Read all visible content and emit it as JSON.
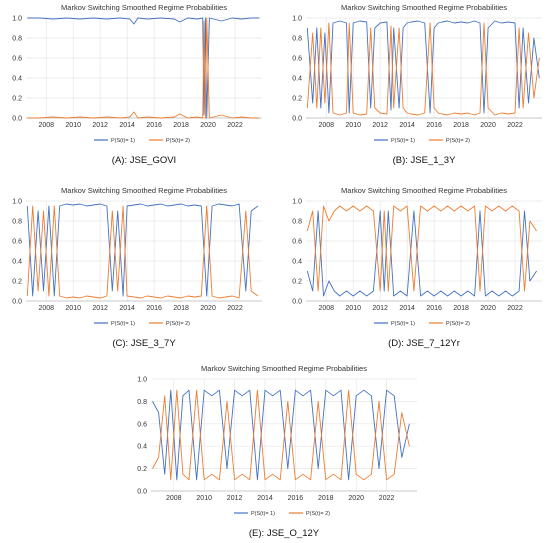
{
  "figure": {
    "colors": {
      "series1": "#4472C4",
      "series2": "#ED7D31",
      "grid": "#e6e6e6",
      "axis": "#bfbfbf"
    }
  },
  "chart_data": [
    {
      "type": "line",
      "title": "Markov Switching Smoothed Regime Probabilities",
      "caption": "(A): JSE_GOVI",
      "xlabel": "",
      "ylabel": "",
      "xlim": [
        2006.5,
        2024.0
      ],
      "ylim": [
        0,
        1.0
      ],
      "xticks": [
        "2008",
        "2010",
        "2012",
        "2014",
        "2016",
        "2018",
        "2020",
        "2022"
      ],
      "yticks": [
        "0.0",
        "0.2",
        "0.4",
        "0.6",
        "0.8",
        "1.0"
      ],
      "grid": true,
      "legend": "bottom",
      "series": [
        {
          "name": "P(S(t)= 1)",
          "color": "#4472C4",
          "x": [
            2006.6,
            2007.5,
            2008.5,
            2009.5,
            2010.5,
            2011.5,
            2012.5,
            2013.5,
            2014.2,
            2014.5,
            2014.8,
            2015.5,
            2016.5,
            2017.5,
            2017.9,
            2018.5,
            2019.2,
            2019.6,
            2019.7,
            2019.8,
            2019.9,
            2020.1,
            2020.4,
            2021.0,
            2021.8,
            2022.5,
            2023.2,
            2023.8
          ],
          "y": [
            1.0,
            1.0,
            0.99,
            1.0,
            0.99,
            1.0,
            0.99,
            1.0,
            0.99,
            0.94,
            1.0,
            0.99,
            1.0,
            0.99,
            0.96,
            1.0,
            0.99,
            1.0,
            0.03,
            1.0,
            0.0,
            1.0,
            0.99,
            0.97,
            1.0,
            0.99,
            1.0,
            1.0
          ]
        },
        {
          "name": "P(S(t)= 2)",
          "color": "#ED7D31",
          "x": [
            2006.6,
            2007.5,
            2008.5,
            2009.5,
            2010.5,
            2011.5,
            2012.5,
            2013.5,
            2014.2,
            2014.5,
            2014.8,
            2015.5,
            2016.5,
            2017.5,
            2017.9,
            2018.5,
            2019.2,
            2019.6,
            2019.7,
            2019.8,
            2019.9,
            2020.1,
            2020.4,
            2021.0,
            2021.8,
            2022.5,
            2023.2,
            2023.8
          ],
          "y": [
            0.0,
            0.0,
            0.01,
            0.0,
            0.01,
            0.0,
            0.01,
            0.0,
            0.01,
            0.06,
            0.0,
            0.01,
            0.0,
            0.01,
            0.04,
            0.0,
            0.01,
            0.0,
            0.97,
            0.0,
            1.0,
            0.0,
            0.01,
            0.03,
            0.0,
            0.01,
            0.0,
            0.0
          ]
        }
      ]
    },
    {
      "type": "line",
      "title": "Markov Switching Smoothed Regime Probabilities",
      "caption": "(B): JSE_1_3Y",
      "xlabel": "",
      "ylabel": "",
      "xlim": [
        2006.5,
        2024.0
      ],
      "ylim": [
        0,
        1.0
      ],
      "xticks": [
        "2008",
        "2010",
        "2012",
        "2014",
        "2016",
        "2018",
        "2020",
        "2022"
      ],
      "yticks": [
        "0.0",
        "0.2",
        "0.4",
        "0.6",
        "0.8",
        "1.0"
      ],
      "grid": true,
      "legend": "bottom",
      "series": [
        {
          "name": "P(S(t)= 1)",
          "color": "#4472C4",
          "x": [
            2006.6,
            2007.0,
            2007.3,
            2007.6,
            2007.9,
            2008.2,
            2008.5,
            2009.0,
            2009.5,
            2009.7,
            2010.0,
            2010.5,
            2011.0,
            2011.3,
            2011.6,
            2012.0,
            2012.5,
            2012.8,
            2013.0,
            2013.4,
            2013.7,
            2014.0,
            2014.3,
            2014.8,
            2015.3,
            2015.7,
            2016.0,
            2016.3,
            2016.6,
            2017.0,
            2017.5,
            2018.0,
            2018.5,
            2019.0,
            2019.4,
            2019.7,
            2020.0,
            2020.5,
            2021.0,
            2021.5,
            2022.0,
            2022.3,
            2022.6,
            2023.0,
            2023.4,
            2023.8
          ],
          "y": [
            0.9,
            0.15,
            0.9,
            0.1,
            0.85,
            0.05,
            0.95,
            0.97,
            0.95,
            0.05,
            0.95,
            0.97,
            0.96,
            0.1,
            0.9,
            0.95,
            0.96,
            0.08,
            0.9,
            0.1,
            0.9,
            0.95,
            0.96,
            0.97,
            0.95,
            0.05,
            0.9,
            0.95,
            0.96,
            0.97,
            0.95,
            0.96,
            0.95,
            0.97,
            0.95,
            0.05,
            0.9,
            0.97,
            0.95,
            0.96,
            0.95,
            0.1,
            0.9,
            0.15,
            0.8,
            0.4
          ]
        },
        {
          "name": "P(S(t)= 2)",
          "color": "#ED7D31",
          "x": [
            2006.6,
            2007.0,
            2007.3,
            2007.6,
            2007.9,
            2008.2,
            2008.5,
            2009.0,
            2009.5,
            2009.7,
            2010.0,
            2010.5,
            2011.0,
            2011.3,
            2011.6,
            2012.0,
            2012.5,
            2012.8,
            2013.0,
            2013.4,
            2013.7,
            2014.0,
            2014.3,
            2014.8,
            2015.3,
            2015.7,
            2016.0,
            2016.3,
            2016.6,
            2017.0,
            2017.5,
            2018.0,
            2018.5,
            2019.0,
            2019.4,
            2019.7,
            2020.0,
            2020.5,
            2021.0,
            2021.5,
            2022.0,
            2022.3,
            2022.6,
            2023.0,
            2023.4,
            2023.8
          ],
          "y": [
            0.1,
            0.85,
            0.1,
            0.9,
            0.15,
            0.95,
            0.05,
            0.03,
            0.05,
            0.95,
            0.05,
            0.03,
            0.04,
            0.9,
            0.1,
            0.05,
            0.04,
            0.92,
            0.1,
            0.9,
            0.1,
            0.05,
            0.04,
            0.03,
            0.05,
            0.95,
            0.1,
            0.05,
            0.04,
            0.03,
            0.05,
            0.04,
            0.05,
            0.03,
            0.05,
            0.95,
            0.1,
            0.03,
            0.05,
            0.04,
            0.05,
            0.9,
            0.1,
            0.85,
            0.2,
            0.6
          ]
        }
      ]
    },
    {
      "type": "line",
      "title": "Markov Switching Smoothed Regime Probabilities",
      "caption": "(C): JSE_3_7Y",
      "xlabel": "",
      "ylabel": "",
      "xlim": [
        2006.5,
        2024.0
      ],
      "ylim": [
        0,
        1.0
      ],
      "xticks": [
        "2008",
        "2010",
        "2012",
        "2014",
        "2016",
        "2018",
        "2020",
        "2022"
      ],
      "yticks": [
        "0.0",
        "0.2",
        "0.4",
        "0.6",
        "0.8",
        "1.0"
      ],
      "grid": true,
      "legend": "bottom",
      "series": [
        {
          "name": "P(S(t)= 1)",
          "color": "#4472C4",
          "x": [
            2006.6,
            2007.0,
            2007.4,
            2007.8,
            2008.2,
            2008.6,
            2009.0,
            2009.5,
            2010.0,
            2010.5,
            2011.0,
            2011.5,
            2012.0,
            2012.5,
            2012.9,
            2013.3,
            2013.7,
            2014.0,
            2014.5,
            2015.0,
            2015.5,
            2016.0,
            2016.5,
            2017.0,
            2017.5,
            2018.0,
            2018.5,
            2019.0,
            2019.5,
            2019.9,
            2020.3,
            2020.8,
            2021.3,
            2021.8,
            2022.3,
            2022.8,
            2023.2,
            2023.7
          ],
          "y": [
            0.95,
            0.05,
            0.9,
            0.1,
            0.95,
            0.05,
            0.95,
            0.97,
            0.96,
            0.97,
            0.95,
            0.96,
            0.97,
            0.95,
            0.1,
            0.9,
            0.05,
            0.95,
            0.96,
            0.97,
            0.95,
            0.96,
            0.97,
            0.95,
            0.96,
            0.97,
            0.95,
            0.96,
            0.95,
            0.05,
            0.95,
            0.97,
            0.96,
            0.95,
            0.97,
            0.1,
            0.9,
            0.95
          ]
        },
        {
          "name": "P(S(t)= 2)",
          "color": "#ED7D31",
          "x": [
            2006.6,
            2007.0,
            2007.4,
            2007.8,
            2008.2,
            2008.6,
            2009.0,
            2009.5,
            2010.0,
            2010.5,
            2011.0,
            2011.5,
            2012.0,
            2012.5,
            2012.9,
            2013.3,
            2013.7,
            2014.0,
            2014.5,
            2015.0,
            2015.5,
            2016.0,
            2016.5,
            2017.0,
            2017.5,
            2018.0,
            2018.5,
            2019.0,
            2019.5,
            2019.9,
            2020.3,
            2020.8,
            2021.3,
            2021.8,
            2022.3,
            2022.8,
            2023.2,
            2023.7
          ],
          "y": [
            0.05,
            0.95,
            0.1,
            0.9,
            0.05,
            0.95,
            0.05,
            0.03,
            0.04,
            0.03,
            0.05,
            0.04,
            0.03,
            0.05,
            0.9,
            0.1,
            0.95,
            0.05,
            0.04,
            0.03,
            0.05,
            0.04,
            0.03,
            0.05,
            0.04,
            0.03,
            0.05,
            0.04,
            0.05,
            0.95,
            0.05,
            0.03,
            0.04,
            0.05,
            0.03,
            0.9,
            0.1,
            0.05
          ]
        }
      ]
    },
    {
      "type": "line",
      "title": "Markov Switching Smoothed Regime Probabilities",
      "caption": "(D): JSE_7_12Yr",
      "xlabel": "",
      "ylabel": "",
      "xlim": [
        2006.5,
        2024.0
      ],
      "ylim": [
        0,
        1.0
      ],
      "xticks": [
        "2008",
        "2010",
        "2012",
        "2014",
        "2016",
        "2018",
        "2020",
        "2022"
      ],
      "yticks": [
        "0.0",
        "0.2",
        "0.4",
        "0.6",
        "0.8",
        "1.0"
      ],
      "grid": true,
      "legend": "bottom",
      "series": [
        {
          "name": "P(S(t)= 1)",
          "color": "#4472C4",
          "x": [
            2006.6,
            2007.0,
            2007.4,
            2007.8,
            2008.2,
            2008.6,
            2009.0,
            2009.5,
            2010.0,
            2010.5,
            2011.0,
            2011.5,
            2012.0,
            2012.3,
            2012.6,
            2013.0,
            2013.5,
            2014.0,
            2014.5,
            2015.0,
            2015.5,
            2016.0,
            2016.5,
            2017.0,
            2017.5,
            2018.0,
            2018.5,
            2019.0,
            2019.4,
            2019.8,
            2020.3,
            2020.8,
            2021.3,
            2021.8,
            2022.3,
            2022.7,
            2023.1,
            2023.6
          ],
          "y": [
            0.3,
            0.1,
            0.9,
            0.05,
            0.2,
            0.1,
            0.05,
            0.1,
            0.05,
            0.1,
            0.05,
            0.1,
            0.9,
            0.1,
            0.9,
            0.05,
            0.1,
            0.05,
            0.9,
            0.05,
            0.1,
            0.05,
            0.1,
            0.05,
            0.1,
            0.05,
            0.1,
            0.05,
            0.9,
            0.05,
            0.1,
            0.05,
            0.1,
            0.05,
            0.1,
            0.9,
            0.2,
            0.3
          ]
        },
        {
          "name": "P(S(t)= 2)",
          "color": "#ED7D31",
          "x": [
            2006.6,
            2007.0,
            2007.4,
            2007.8,
            2008.2,
            2008.6,
            2009.0,
            2009.5,
            2010.0,
            2010.5,
            2011.0,
            2011.5,
            2012.0,
            2012.3,
            2012.6,
            2013.0,
            2013.5,
            2014.0,
            2014.5,
            2015.0,
            2015.5,
            2016.0,
            2016.5,
            2017.0,
            2017.5,
            2018.0,
            2018.5,
            2019.0,
            2019.4,
            2019.8,
            2020.3,
            2020.8,
            2021.3,
            2021.8,
            2022.3,
            2022.7,
            2023.1,
            2023.6
          ],
          "y": [
            0.7,
            0.9,
            0.1,
            0.95,
            0.8,
            0.9,
            0.95,
            0.9,
            0.95,
            0.9,
            0.95,
            0.9,
            0.1,
            0.9,
            0.1,
            0.95,
            0.9,
            0.95,
            0.1,
            0.95,
            0.9,
            0.95,
            0.9,
            0.95,
            0.9,
            0.95,
            0.9,
            0.95,
            0.1,
            0.95,
            0.9,
            0.95,
            0.9,
            0.95,
            0.9,
            0.1,
            0.8,
            0.7
          ]
        }
      ]
    },
    {
      "type": "line",
      "title": "Markov Switching Smoothed Regime Probabilities",
      "caption": "(E): JSE_O_12Y",
      "xlabel": "",
      "ylabel": "",
      "xlim": [
        2006.5,
        2024.0
      ],
      "ylim": [
        0,
        1.0
      ],
      "xticks": [
        "2008",
        "2010",
        "2012",
        "2014",
        "2016",
        "2018",
        "2020",
        "2022"
      ],
      "yticks": [
        "0.0",
        "0.2",
        "0.4",
        "0.6",
        "0.8",
        "1.0"
      ],
      "grid": true,
      "legend": "bottom",
      "series": [
        {
          "name": "P(S(t)= 1)",
          "color": "#4472C4",
          "x": [
            2006.6,
            2007.0,
            2007.4,
            2007.8,
            2008.2,
            2008.6,
            2009.0,
            2009.5,
            2010.0,
            2010.5,
            2011.0,
            2011.5,
            2012.0,
            2012.5,
            2013.0,
            2013.5,
            2014.0,
            2014.5,
            2015.0,
            2015.5,
            2016.0,
            2016.5,
            2017.0,
            2017.5,
            2018.0,
            2018.5,
            2019.0,
            2019.5,
            2020.0,
            2020.5,
            2021.0,
            2021.5,
            2022.0,
            2022.5,
            2023.0,
            2023.5
          ],
          "y": [
            0.8,
            0.7,
            0.15,
            0.9,
            0.1,
            0.85,
            0.9,
            0.1,
            0.9,
            0.85,
            0.9,
            0.2,
            0.9,
            0.85,
            0.9,
            0.1,
            0.9,
            0.85,
            0.9,
            0.2,
            0.9,
            0.85,
            0.9,
            0.2,
            0.9,
            0.85,
            0.9,
            0.1,
            0.85,
            0.9,
            0.85,
            0.2,
            0.9,
            0.85,
            0.3,
            0.6
          ]
        },
        {
          "name": "P(S(t)= 2)",
          "color": "#ED7D31",
          "x": [
            2006.6,
            2007.0,
            2007.4,
            2007.8,
            2008.2,
            2008.6,
            2009.0,
            2009.5,
            2010.0,
            2010.5,
            2011.0,
            2011.5,
            2012.0,
            2012.5,
            2013.0,
            2013.5,
            2014.0,
            2014.5,
            2015.0,
            2015.5,
            2016.0,
            2016.5,
            2017.0,
            2017.5,
            2018.0,
            2018.5,
            2019.0,
            2019.5,
            2020.0,
            2020.5,
            2021.0,
            2021.5,
            2022.0,
            2022.5,
            2023.0,
            2023.5
          ],
          "y": [
            0.2,
            0.3,
            0.85,
            0.1,
            0.9,
            0.15,
            0.1,
            0.9,
            0.1,
            0.15,
            0.1,
            0.8,
            0.1,
            0.15,
            0.1,
            0.9,
            0.1,
            0.15,
            0.1,
            0.8,
            0.1,
            0.15,
            0.1,
            0.8,
            0.1,
            0.15,
            0.1,
            0.9,
            0.15,
            0.1,
            0.15,
            0.8,
            0.1,
            0.15,
            0.7,
            0.4
          ]
        }
      ]
    }
  ]
}
